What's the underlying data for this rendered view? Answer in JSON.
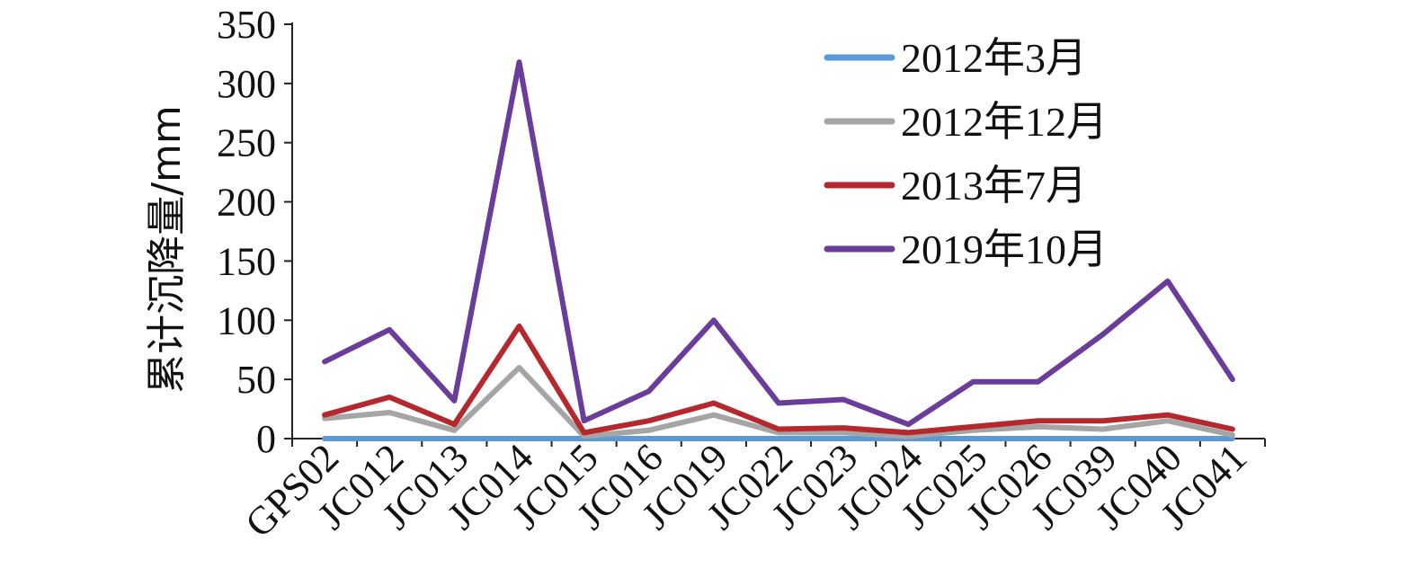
{
  "chart_data": {
    "type": "line",
    "title": "",
    "xlabel": "",
    "ylabel": "累计沉降量/mm",
    "ylim": [
      0,
      350
    ],
    "yticks": [
      0,
      50,
      100,
      150,
      200,
      250,
      300,
      350
    ],
    "grid": false,
    "legend": "top-right",
    "categories": [
      "GPS02",
      "JC012",
      "JC013",
      "JC014",
      "JC015",
      "JC016",
      "JC019",
      "JC022",
      "JC023",
      "JC024",
      "JC025",
      "JC026",
      "JC039",
      "JC040",
      "JC041"
    ],
    "series": [
      {
        "name": "2012年3月",
        "color": "#5b9bd5",
        "values": [
          0,
          0,
          0,
          0,
          0,
          0,
          0,
          0,
          0,
          0,
          0,
          0,
          0,
          0,
          0
        ]
      },
      {
        "name": "2012年12月",
        "color": "#a5a5a5",
        "values": [
          17,
          22,
          7,
          60,
          2,
          7,
          20,
          5,
          5,
          2,
          7,
          10,
          8,
          15,
          3
        ]
      },
      {
        "name": "2013年7月",
        "color": "#b5282e",
        "values": [
          20,
          35,
          12,
          95,
          5,
          15,
          30,
          8,
          9,
          5,
          10,
          15,
          15,
          20,
          8
        ]
      },
      {
        "name": "2019年10月",
        "color": "#6a3d9a",
        "values": [
          65,
          92,
          32,
          318,
          15,
          40,
          100,
          30,
          33,
          12,
          48,
          48,
          88,
          133,
          50
        ]
      }
    ]
  }
}
